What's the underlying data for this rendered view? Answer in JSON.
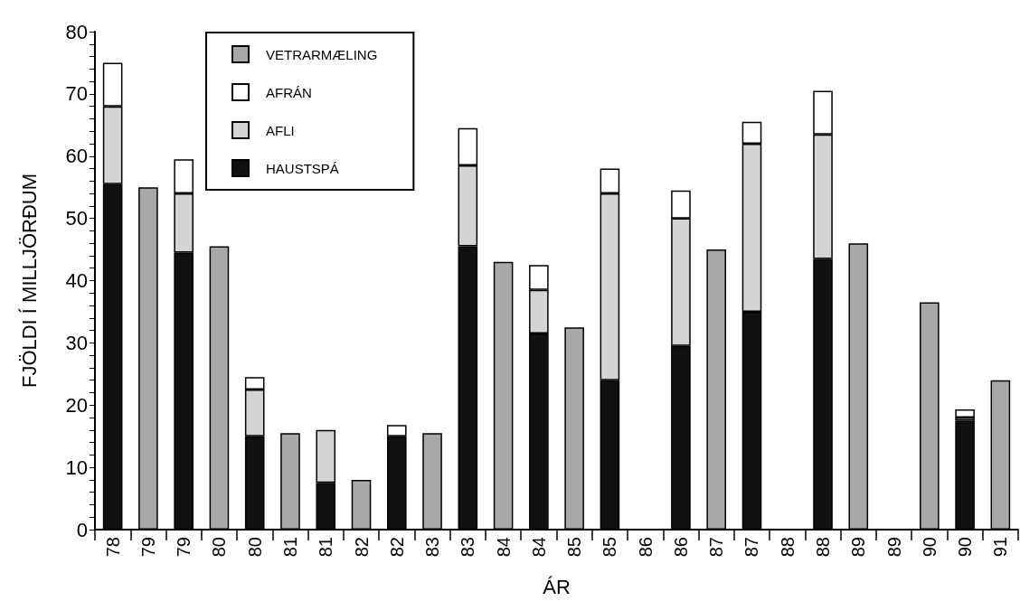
{
  "chart_data": {
    "type": "bar",
    "stacked": true,
    "xlabel": "ÁR",
    "ylabel": "FJÖLDI Í MILLJÖRÐUM",
    "categories": [
      "78",
      "79",
      "79",
      "80",
      "80",
      "81",
      "81",
      "82",
      "82",
      "83",
      "83",
      "84",
      "84",
      "85",
      "85",
      "86",
      "86",
      "87",
      "87",
      "88",
      "88",
      "89",
      "89",
      "90",
      "90",
      "91"
    ],
    "series": [
      {
        "name": "HAUSTSPÁ",
        "color": "#111111",
        "values": [
          55.5,
          null,
          44.5,
          null,
          15,
          null,
          7.5,
          null,
          15,
          null,
          45.5,
          null,
          31.5,
          null,
          24,
          null,
          29.5,
          null,
          35,
          null,
          43.5,
          null,
          null,
          null,
          17.5,
          null
        ]
      },
      {
        "name": "AFLI",
        "color": "#d4d4d4",
        "values": [
          12.5,
          null,
          9.5,
          null,
          7.5,
          null,
          8.5,
          null,
          null,
          null,
          13,
          null,
          7,
          null,
          30,
          null,
          20.5,
          null,
          27,
          null,
          20,
          null,
          null,
          null,
          0.5,
          null
        ]
      },
      {
        "name": "AFRÁN",
        "color": "#ffffff",
        "values": [
          7,
          null,
          5.5,
          null,
          2,
          null,
          null,
          null,
          1.8,
          null,
          6,
          null,
          4,
          null,
          4,
          null,
          4.5,
          null,
          3.5,
          null,
          7,
          null,
          null,
          null,
          1.3,
          null
        ]
      },
      {
        "name": "VETRARMÆLING",
        "color": "#a8a8a8",
        "values": [
          null,
          55,
          null,
          45.5,
          null,
          15.5,
          null,
          8,
          null,
          15.5,
          null,
          43,
          null,
          32.5,
          null,
          null,
          null,
          45,
          null,
          null,
          null,
          46,
          null,
          36.5,
          null,
          24
        ]
      }
    ],
    "ylim": [
      0,
      80
    ],
    "yticks": [
      0,
      {
        "value": 2,
        "label": null
      },
      {
        "value": 4,
        "label": null
      },
      {
        "value": 6,
        "label": null
      },
      {
        "value": 8,
        "label": null
      },
      10,
      {
        "value": 12,
        "label": null
      },
      {
        "value": 14,
        "label": null
      },
      {
        "value": 16,
        "label": null
      },
      {
        "value": 18,
        "label": null
      },
      20,
      {
        "value": 22,
        "label": null
      },
      {
        "value": 24,
        "label": null
      },
      {
        "value": 26,
        "label": null
      },
      {
        "value": 28,
        "label": null
      },
      30,
      {
        "value": 32,
        "label": null
      },
      {
        "value": 34,
        "label": null
      },
      {
        "value": 36,
        "label": null
      },
      {
        "value": 38,
        "label": null
      },
      40,
      {
        "value": 42,
        "label": null
      },
      {
        "value": 44,
        "label": null
      },
      {
        "value": 46,
        "label": null
      },
      {
        "value": 48,
        "label": null
      },
      50,
      {
        "value": 52,
        "label": null
      },
      {
        "value": 54,
        "label": null
      },
      {
        "value": 56,
        "label": null
      },
      {
        "value": 58,
        "label": null
      },
      60,
      {
        "value": 62,
        "label": null
      },
      {
        "value": 64,
        "label": null
      },
      {
        "value": 66,
        "label": null
      },
      {
        "value": 68,
        "label": null
      },
      70,
      {
        "value": 72,
        "label": null
      },
      {
        "value": 74,
        "label": null
      },
      {
        "value": 76,
        "label": null
      },
      {
        "value": 78,
        "label": null
      },
      80
    ],
    "legend": "top",
    "grid": false
  }
}
